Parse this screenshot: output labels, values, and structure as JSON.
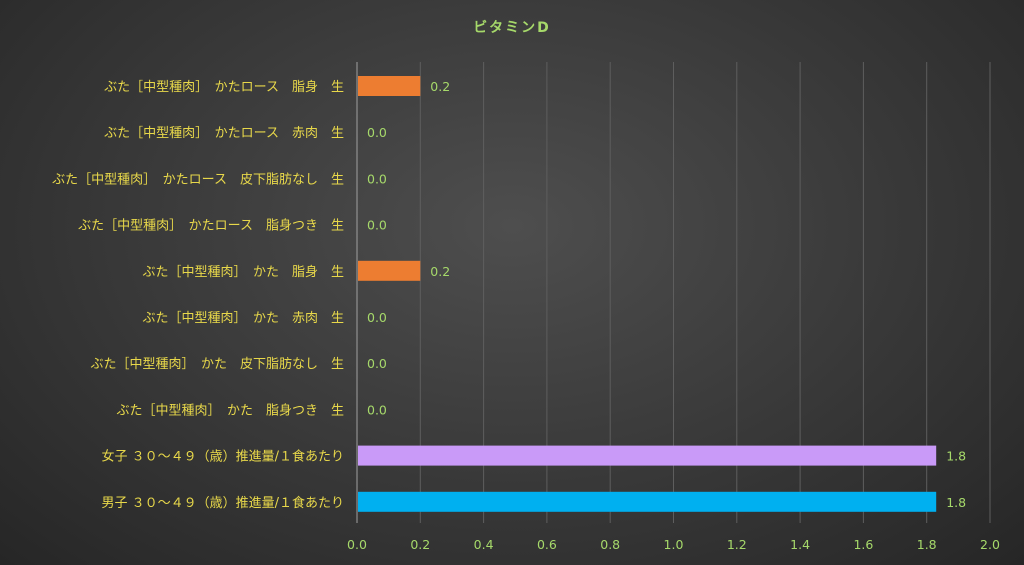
{
  "chart_data": {
    "type": "bar",
    "orientation": "horizontal",
    "title": "ビタミンD",
    "categories": [
      "ぶた［中型種肉］　かたロース　脂身　生",
      "ぶた［中型種肉］　かたロース　赤肉　生",
      "ぶた［中型種肉］　かたロース　皮下脂肪なし　生",
      "ぶた［中型種肉］　かたロース　脂身つき　生",
      "ぶた［中型種肉］　かた　脂身　生",
      "ぶた［中型種肉］　かた　赤肉　生",
      "ぶた［中型種肉］　かた　皮下脂肪なし　生",
      "ぶた［中型種肉］　かた　脂身つき　生",
      "女子 ３０～４９（歳）推進量/１食あたり",
      "男子 ３０～４９（歳）推進量/１食あたり"
    ],
    "values": [
      0.2,
      0.0,
      0.0,
      0.0,
      0.2,
      0.0,
      0.0,
      0.0,
      1.83,
      1.83
    ],
    "value_labels": [
      "0.2",
      "0.0",
      "0.0",
      "0.0",
      "0.2",
      "0.0",
      "0.0",
      "0.0",
      "1.8",
      "1.8"
    ],
    "colors": [
      "#ed7d31",
      "#ed7d31",
      "#ed7d31",
      "#ed7d31",
      "#ed7d31",
      "#ed7d31",
      "#ed7d31",
      "#ed7d31",
      "#c99af8",
      "#00b0f0"
    ],
    "xlim": [
      0,
      2.0
    ],
    "x_ticks": [
      "0.0",
      "0.2",
      "0.4",
      "0.6",
      "0.8",
      "1.0",
      "1.2",
      "1.4",
      "1.6",
      "1.8",
      "2.0"
    ],
    "xlabel": "",
    "ylabel": "",
    "grid": "vertical",
    "legend": "none"
  },
  "colors": {
    "title": "#a6d96a",
    "category_label": "#e8d84a",
    "tick_label": "#a6d96a",
    "gridline": "#5e5e5e",
    "axis_line": "#a0a0a0"
  }
}
